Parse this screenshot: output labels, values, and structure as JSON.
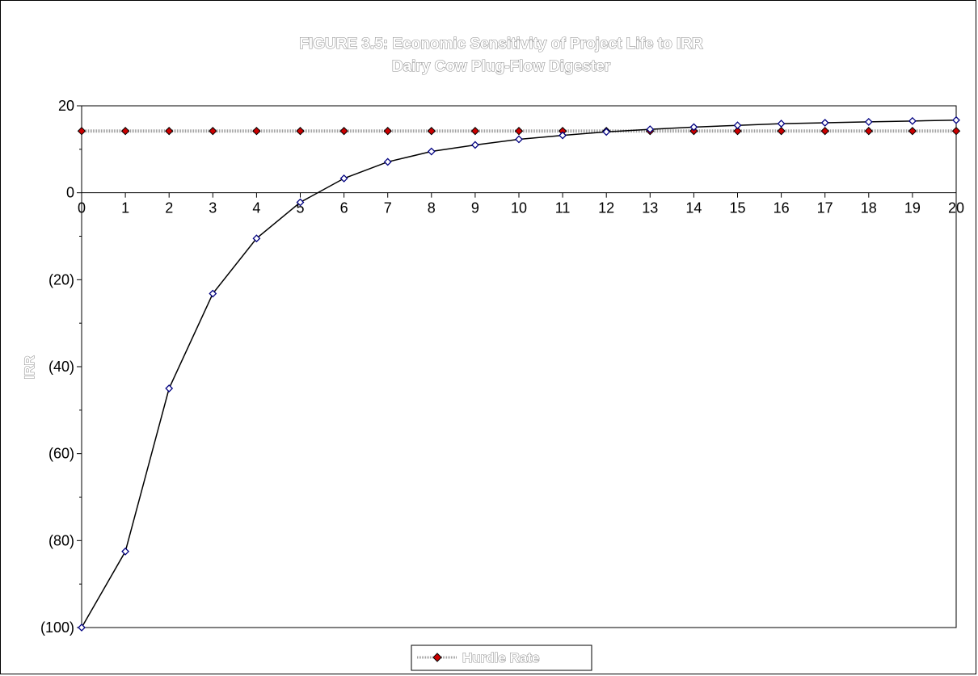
{
  "chart_data": {
    "type": "line",
    "title": "FIGURE 3.5:  Economic Sensitivity of Project Life to IRR",
    "subtitle": "Dairy Cow Plug-Flow Digester",
    "xlabel": "",
    "ylabel": "IRR",
    "xlim": [
      0,
      20
    ],
    "ylim": [
      -100,
      20
    ],
    "x_ticks": [
      "0",
      "1",
      "2",
      "3",
      "4",
      "5",
      "6",
      "7",
      "8",
      "9",
      "10",
      "11",
      "12",
      "13",
      "14",
      "15",
      "16",
      "17",
      "18",
      "19",
      "20"
    ],
    "y_ticks": [
      {
        "value": 20,
        "label": "20"
      },
      {
        "value": 0,
        "label": "0"
      },
      {
        "value": -20,
        "label": "(20)"
      },
      {
        "value": -40,
        "label": "(40)"
      },
      {
        "value": -60,
        "label": "(60)"
      },
      {
        "value": -80,
        "label": "(80)"
      },
      {
        "value": -100,
        "label": "(100)"
      }
    ],
    "grid": false,
    "legend_position": "bottom",
    "series": [
      {
        "name": "",
        "color": "#000000",
        "marker": "diamond-open",
        "marker_color": "#000080",
        "x": [
          0,
          1,
          2,
          3,
          4,
          5,
          6,
          7,
          8,
          9,
          10,
          11,
          12,
          13,
          14,
          15,
          16,
          17,
          18,
          19,
          20
        ],
        "values": [
          -100,
          -82.5,
          -45,
          -23.2,
          -10.5,
          -2.2,
          3.3,
          7.1,
          9.5,
          11.0,
          12.3,
          13.2,
          14.0,
          14.6,
          15.1,
          15.5,
          15.9,
          16.1,
          16.3,
          16.5,
          16.7
        ]
      },
      {
        "name": "Hurdle Rate",
        "color": "#a0a0a0",
        "marker": "diamond-filled",
        "marker_color": "#cc0000",
        "x": [
          0,
          1,
          2,
          3,
          4,
          5,
          6,
          7,
          8,
          9,
          10,
          11,
          12,
          13,
          14,
          15,
          16,
          17,
          18,
          19,
          20
        ],
        "values": [
          14.2,
          14.2,
          14.2,
          14.2,
          14.2,
          14.2,
          14.2,
          14.2,
          14.2,
          14.2,
          14.2,
          14.2,
          14.2,
          14.2,
          14.2,
          14.2,
          14.2,
          14.2,
          14.2,
          14.2,
          14.2
        ]
      }
    ]
  }
}
